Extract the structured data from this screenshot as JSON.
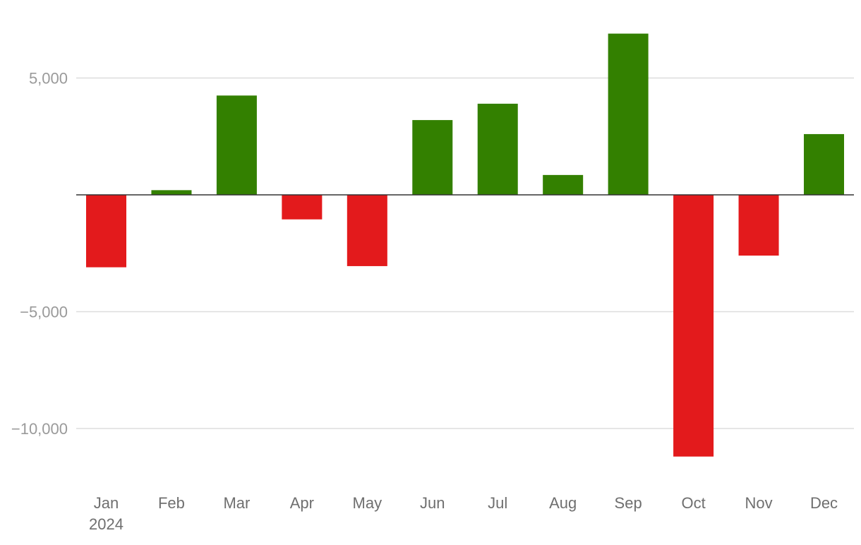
{
  "chart_data": {
    "type": "bar",
    "title": "",
    "xlabel": "",
    "ylabel": "",
    "categories": [
      "Jan",
      "Feb",
      "Mar",
      "Apr",
      "May",
      "Jun",
      "Jul",
      "Aug",
      "Sep",
      "Oct",
      "Nov",
      "Dec"
    ],
    "year_label": "2024",
    "values": [
      -3100,
      200,
      4250,
      -1050,
      -3050,
      3200,
      3900,
      850,
      6900,
      -11200,
      -2600,
      2600
    ],
    "ylim": [
      -12500,
      7500
    ],
    "yticks": [
      5000,
      -5000,
      -10000
    ],
    "ytick_labels": [
      "5,000",
      "−5,000",
      "−10,000"
    ],
    "grid": true,
    "legend": "none",
    "colors": {
      "positive": "#338000",
      "negative": "#e31a1c"
    }
  }
}
